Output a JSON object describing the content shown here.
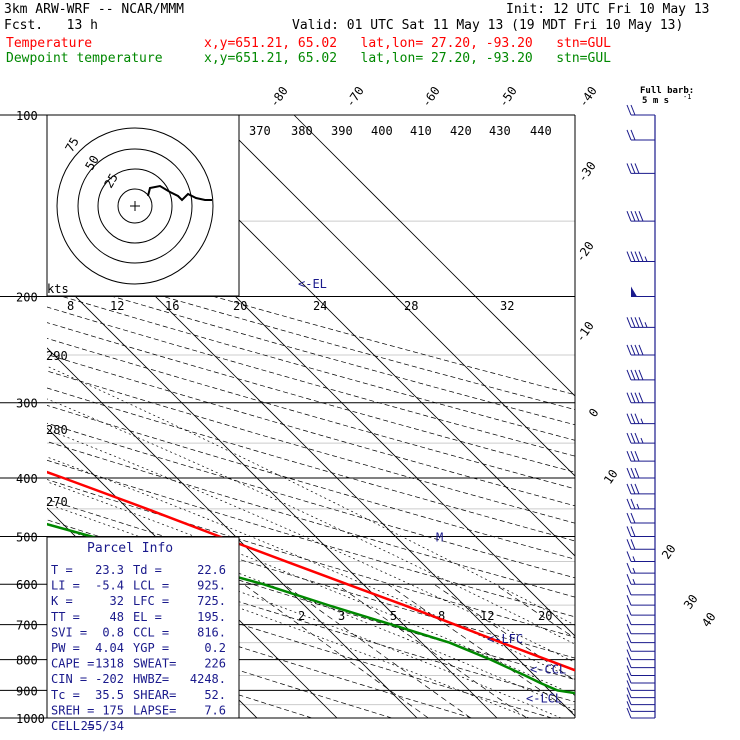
{
  "header": {
    "model": "3km ARW-WRF -- NCAR/MMM",
    "init": "Init: 12 UTC Fri 10 May 13",
    "fcst": "Fcst.   13 h",
    "valid": "Valid: 01 UTC Sat 11 May 13 (19 MDT Fri 10 May 13)",
    "temp_label": "Temperature",
    "dew_label": "Dewpoint temperature",
    "point_line": "x,y=651.21, 65.02   lat,lon= 27.20, -93.20   stn=GUL"
  },
  "colors": {
    "temperature": "#ff0000",
    "dewpoint": "#008800",
    "parcel": "#1a1a8c"
  },
  "barb_legend": {
    "line1": "Full barb:",
    "line2": "5 m s",
    "sup": "-1"
  },
  "hodograph": {
    "unit_label": "kts",
    "ring_labels": [
      "75",
      "50",
      "25"
    ]
  },
  "parcel_info": {
    "title": "Parcel Info",
    "rows": [
      [
        "T  =",
        "23.3",
        "Td =",
        "22.6"
      ],
      [
        "LI =",
        "-5.4",
        "LCL =",
        "925."
      ],
      [
        "K  =",
        "32",
        "LFC =",
        "725."
      ],
      [
        "TT =",
        "48",
        "EL  =",
        "195."
      ],
      [
        "SVI =",
        "0.8",
        "CCL =",
        "816."
      ],
      [
        "PW =",
        "4.04",
        "YGP =",
        "0.2"
      ],
      [
        "CAPE =",
        "1318",
        "SWEAT=",
        "226"
      ],
      [
        "CIN =",
        "-202",
        "HWBZ=",
        "4248."
      ],
      [
        "Tc =",
        "35.5",
        "SHEAR=",
        "52."
      ],
      [
        "SREH =",
        "175",
        "LAPSE=",
        "7.6"
      ],
      [
        "CELL =",
        "255/34",
        "",
        ""
      ]
    ]
  },
  "level_marks": {
    "el": "<-EL",
    "lfc": "<-LFC",
    "ccl": "<-CCL",
    "lcl": "<-LCL",
    "freeze": "M"
  },
  "chart_data": {
    "type": "line",
    "y_axis": "pressure_hPa",
    "ylim": [
      1000,
      100
    ],
    "pressure_ticks": [
      100,
      200,
      300,
      400,
      500,
      600,
      700,
      800,
      900,
      1000
    ],
    "isotherm_labels": [
      "-80",
      "-70",
      "-60",
      "-50",
      "-40",
      "-30",
      "-20",
      "-10",
      "0",
      "10",
      "20",
      "30",
      "40"
    ],
    "theta_labels": [
      "370",
      "380",
      "390",
      "400",
      "410",
      "420",
      "430",
      "440",
      "290",
      "280",
      "270"
    ],
    "mixing_ratio_labels": [
      "2",
      "3",
      "5",
      "8",
      "12",
      "20"
    ],
    "wet_bulb_labels": [
      "8",
      "12",
      "16",
      "20",
      "24",
      "28",
      "32"
    ],
    "series": [
      {
        "name": "Temperature",
        "pressure": [
          1000,
          975,
          950,
          925,
          900,
          875,
          850,
          800,
          750,
          700,
          650,
          600,
          550,
          500,
          450,
          400,
          350,
          300,
          250,
          200,
          175,
          150,
          125,
          110,
          100
        ],
        "values": [
          23.3,
          24.1,
          23.0,
          21.3,
          19.9,
          18.3,
          16.8,
          13.5,
          10.0,
          6.4,
          2.5,
          -2.0,
          -6.8,
          -12.0,
          -17.6,
          -24.2,
          -32.0,
          -41.0,
          -51.5,
          -62.5,
          -68.0,
          -72.0,
          -72.5,
          -70.0,
          -67.0
        ]
      },
      {
        "name": "Dewpoint temperature",
        "pressure": [
          1000,
          975,
          950,
          925,
          900,
          875,
          850,
          800,
          750,
          700,
          650,
          600,
          550,
          500,
          450,
          400,
          350,
          300,
          250,
          200,
          175,
          150,
          125,
          110,
          100
        ],
        "values": [
          22.6,
          22.3,
          20.7,
          16.0,
          11.0,
          9.8,
          8.8,
          6.5,
          3.5,
          -1.5,
          -7.0,
          -12.5,
          -20.0,
          -28.0,
          -37.0,
          -46.0,
          -52.0,
          -56.0,
          -63.0,
          -72.0,
          -77.0,
          -80.0,
          -84.0,
          -85.0,
          -85.5
        ]
      }
    ],
    "wind_barbs": {
      "pressure": [
        1000,
        975,
        950,
        925,
        900,
        875,
        850,
        825,
        800,
        775,
        750,
        725,
        700,
        675,
        650,
        625,
        600,
        575,
        550,
        525,
        500,
        475,
        450,
        425,
        400,
        375,
        350,
        325,
        300,
        275,
        250,
        225,
        200,
        175,
        150,
        125,
        110,
        100
      ],
      "speed_ms": [
        5,
        6,
        7,
        7,
        6,
        6,
        5,
        5,
        5,
        5,
        5,
        6,
        6,
        6,
        7,
        7,
        8,
        8,
        9,
        10,
        11,
        12,
        14,
        15,
        16,
        17,
        18,
        19,
        20,
        21,
        22,
        24,
        25,
        23,
        20,
        16,
        12,
        10
      ],
      "direction_deg": [
        180,
        190,
        200,
        210,
        220,
        230,
        240,
        245,
        250,
        250,
        255,
        255,
        260,
        260,
        260,
        265,
        265,
        265,
        270,
        270,
        270,
        270,
        270,
        275,
        275,
        275,
        275,
        275,
        275,
        275,
        275,
        275,
        275,
        275,
        275,
        275,
        275,
        275
      ]
    }
  }
}
